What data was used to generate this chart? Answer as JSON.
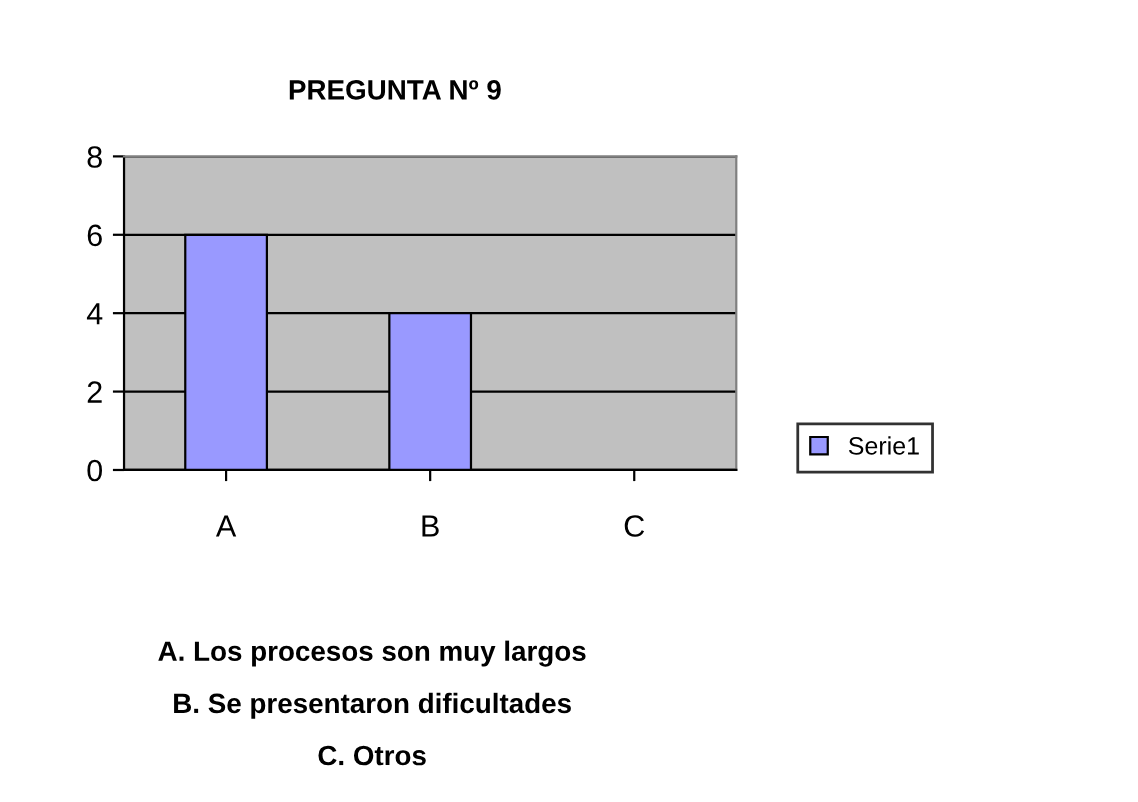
{
  "chart_data": {
    "type": "bar",
    "title": "PREGUNTA Nº 9",
    "categories": [
      "A",
      "B",
      "C"
    ],
    "series": [
      {
        "name": "Serie1",
        "color": "#9999ff",
        "values": [
          6,
          4,
          0
        ]
      }
    ],
    "ylim": [
      0,
      8
    ],
    "yticks": [
      0,
      2,
      4,
      6,
      8
    ],
    "grid": "y",
    "legend": "right",
    "annotations": [
      "A. Los procesos son muy largos",
      "B. Se presentaron dificultades",
      "C. Otros"
    ]
  }
}
